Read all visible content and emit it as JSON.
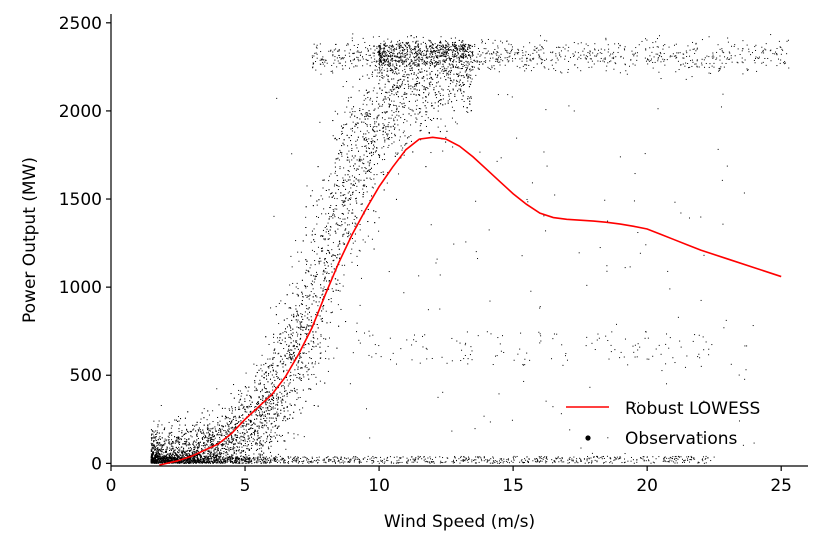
{
  "chart_data": {
    "type": "scatter",
    "xlabel": "Wind Speed (m/s)",
    "ylabel": "Power Output (MW)",
    "xlim": [
      0,
      26
    ],
    "ylim": [
      -15,
      2550
    ],
    "xticks": [
      0,
      5,
      10,
      15,
      20,
      25
    ],
    "yticks": [
      0,
      500,
      1000,
      1500,
      2000,
      2500
    ],
    "grid": false,
    "legend_position": "bottom-right",
    "series": [
      {
        "name": "Robust LOWESS",
        "kind": "line",
        "color": "#ff0000",
        "x": [
          1.8,
          2.5,
          3.0,
          3.5,
          4.0,
          4.5,
          5.0,
          5.5,
          6.0,
          6.5,
          7.0,
          7.5,
          8.0,
          8.5,
          9.0,
          9.5,
          10.0,
          10.5,
          11.0,
          11.5,
          12.0,
          12.5,
          13.0,
          13.5,
          14.0,
          14.5,
          15.0,
          15.5,
          16.0,
          16.5,
          17.0,
          17.5,
          18.0,
          18.5,
          19.0,
          19.5,
          20.0,
          20.5,
          21.0,
          21.5,
          22.0,
          23.0,
          24.0,
          25.0
        ],
        "y": [
          -10,
          15,
          40,
          75,
          110,
          170,
          250,
          320,
          390,
          490,
          620,
          770,
          960,
          1140,
          1300,
          1440,
          1570,
          1680,
          1780,
          1840,
          1850,
          1840,
          1800,
          1740,
          1670,
          1600,
          1530,
          1470,
          1420,
          1395,
          1385,
          1380,
          1375,
          1368,
          1358,
          1345,
          1330,
          1300,
          1270,
          1240,
          1210,
          1160,
          1110,
          1060
        ]
      },
      {
        "name": "Observations",
        "kind": "scatter",
        "color": "#000000",
        "regimes": [
          {
            "kind": "power_curve_band",
            "x_range": [
              1.5,
              13.5
            ],
            "n": 6000
          },
          {
            "kind": "rated_cluster",
            "x_range": [
              7.5,
              25.3
            ],
            "y_center": 2310,
            "y_spread": 45,
            "n": 1200
          },
          {
            "kind": "curtailed_near_zero",
            "x_range": [
              1.5,
              22.5
            ],
            "y_range": [
              0,
              40
            ],
            "n": 900
          },
          {
            "kind": "mid_level_scatter",
            "x_range": [
              9,
              22.5
            ],
            "y_range": [
              550,
              750
            ],
            "n": 140
          },
          {
            "kind": "sparse_scatter",
            "x_range": [
              6,
              24
            ],
            "y_range": [
              50,
              2300
            ],
            "n": 160
          }
        ]
      }
    ]
  }
}
